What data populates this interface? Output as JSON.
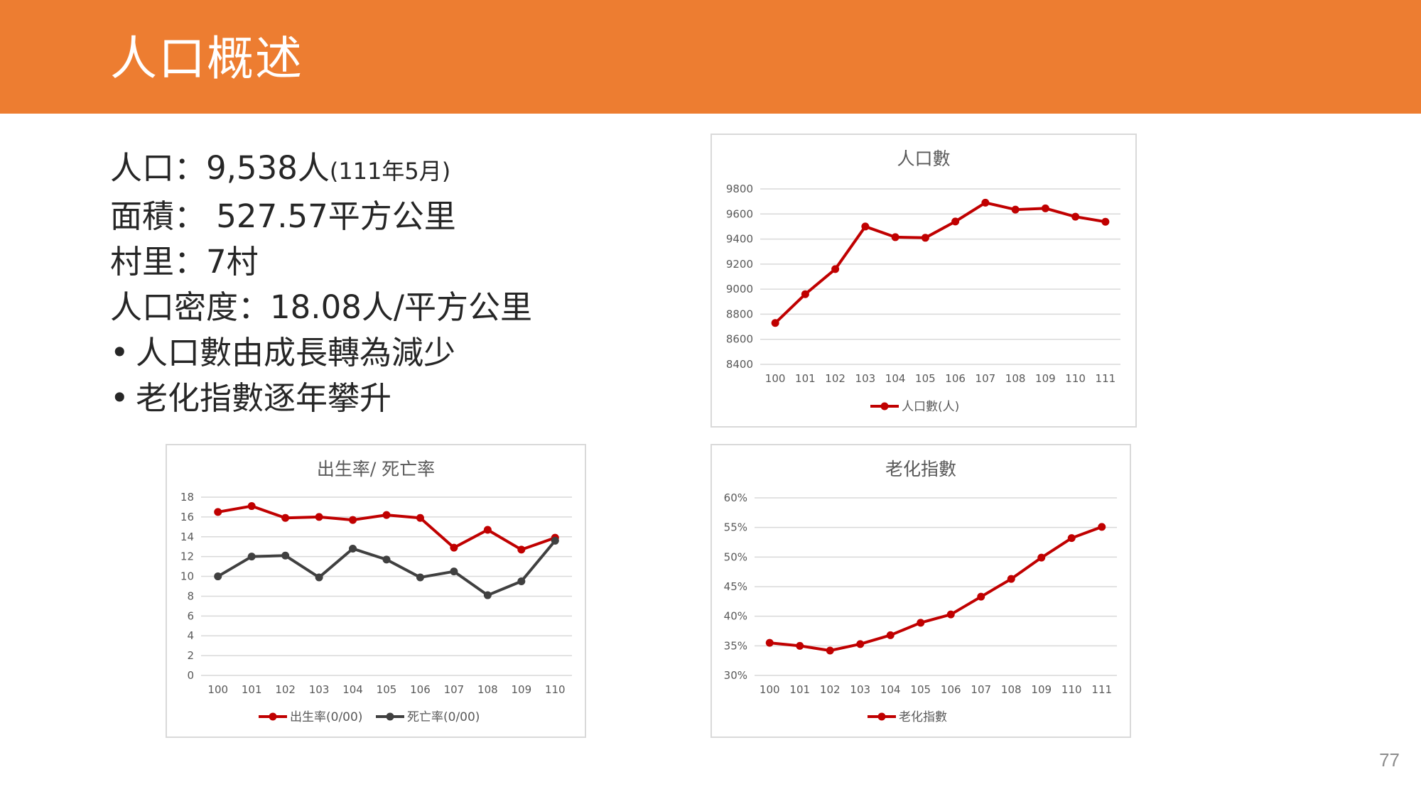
{
  "header": {
    "title": "人口概述"
  },
  "info": {
    "population": {
      "text": "人口：9,538人",
      "note": "(111年5月)"
    },
    "area": "面積： 527.57平方公里",
    "villages": "村里：7村",
    "density": "人口密度：18.08人/平方公里",
    "bullets": [
      "人口數由成長轉為減少",
      "老化指數逐年攀升"
    ]
  },
  "colors": {
    "accent": "#ed7d31",
    "series_red": "#c00000",
    "series_dark": "#404040"
  },
  "page_number": "77",
  "chart_data": [
    {
      "id": "population",
      "type": "line",
      "title": "人口數",
      "categories": [
        "100",
        "101",
        "102",
        "103",
        "104",
        "105",
        "106",
        "107",
        "108",
        "109",
        "110",
        "111"
      ],
      "series": [
        {
          "name": "人口數(人)",
          "color": "#c00000",
          "values": [
            8730,
            8960,
            9160,
            9500,
            9415,
            9410,
            9540,
            9690,
            9635,
            9645,
            9578,
            9538
          ]
        }
      ],
      "ylim": [
        8400,
        9800
      ],
      "yticks": [
        8400,
        8600,
        8800,
        9000,
        9200,
        9400,
        9600,
        9800
      ],
      "grid": true,
      "legend": "bottom"
    },
    {
      "id": "birth-death",
      "type": "line",
      "title": "出生率/ 死亡率",
      "categories": [
        "100",
        "101",
        "102",
        "103",
        "104",
        "105",
        "106",
        "107",
        "108",
        "109",
        "110"
      ],
      "series": [
        {
          "name": "出生率(0/00)",
          "color": "#c00000",
          "values": [
            16.5,
            17.1,
            15.9,
            16.0,
            15.7,
            16.2,
            15.9,
            12.9,
            14.7,
            12.7,
            13.9
          ]
        },
        {
          "name": "死亡率(0/00)",
          "color": "#404040",
          "values": [
            10.0,
            12.0,
            12.1,
            9.9,
            12.8,
            11.7,
            9.9,
            10.5,
            8.1,
            9.5,
            13.6
          ]
        }
      ],
      "ylim": [
        0,
        18
      ],
      "yticks": [
        0,
        2,
        4,
        6,
        8,
        10,
        12,
        14,
        16,
        18
      ],
      "grid": true,
      "legend": "bottom"
    },
    {
      "id": "aging-index",
      "type": "line",
      "title": "老化指數",
      "categories": [
        "100",
        "101",
        "102",
        "103",
        "104",
        "105",
        "106",
        "107",
        "108",
        "109",
        "110",
        "111"
      ],
      "series": [
        {
          "name": "老化指數",
          "color": "#c00000",
          "values": [
            35.5,
            35.0,
            34.2,
            35.3,
            36.8,
            38.9,
            40.3,
            43.3,
            46.3,
            49.9,
            53.2,
            55.1
          ]
        }
      ],
      "ylim": [
        30,
        60
      ],
      "yticks": [
        30,
        35,
        40,
        45,
        50,
        55,
        60
      ],
      "ytick_suffix": "%",
      "grid": true,
      "legend": "bottom"
    }
  ]
}
